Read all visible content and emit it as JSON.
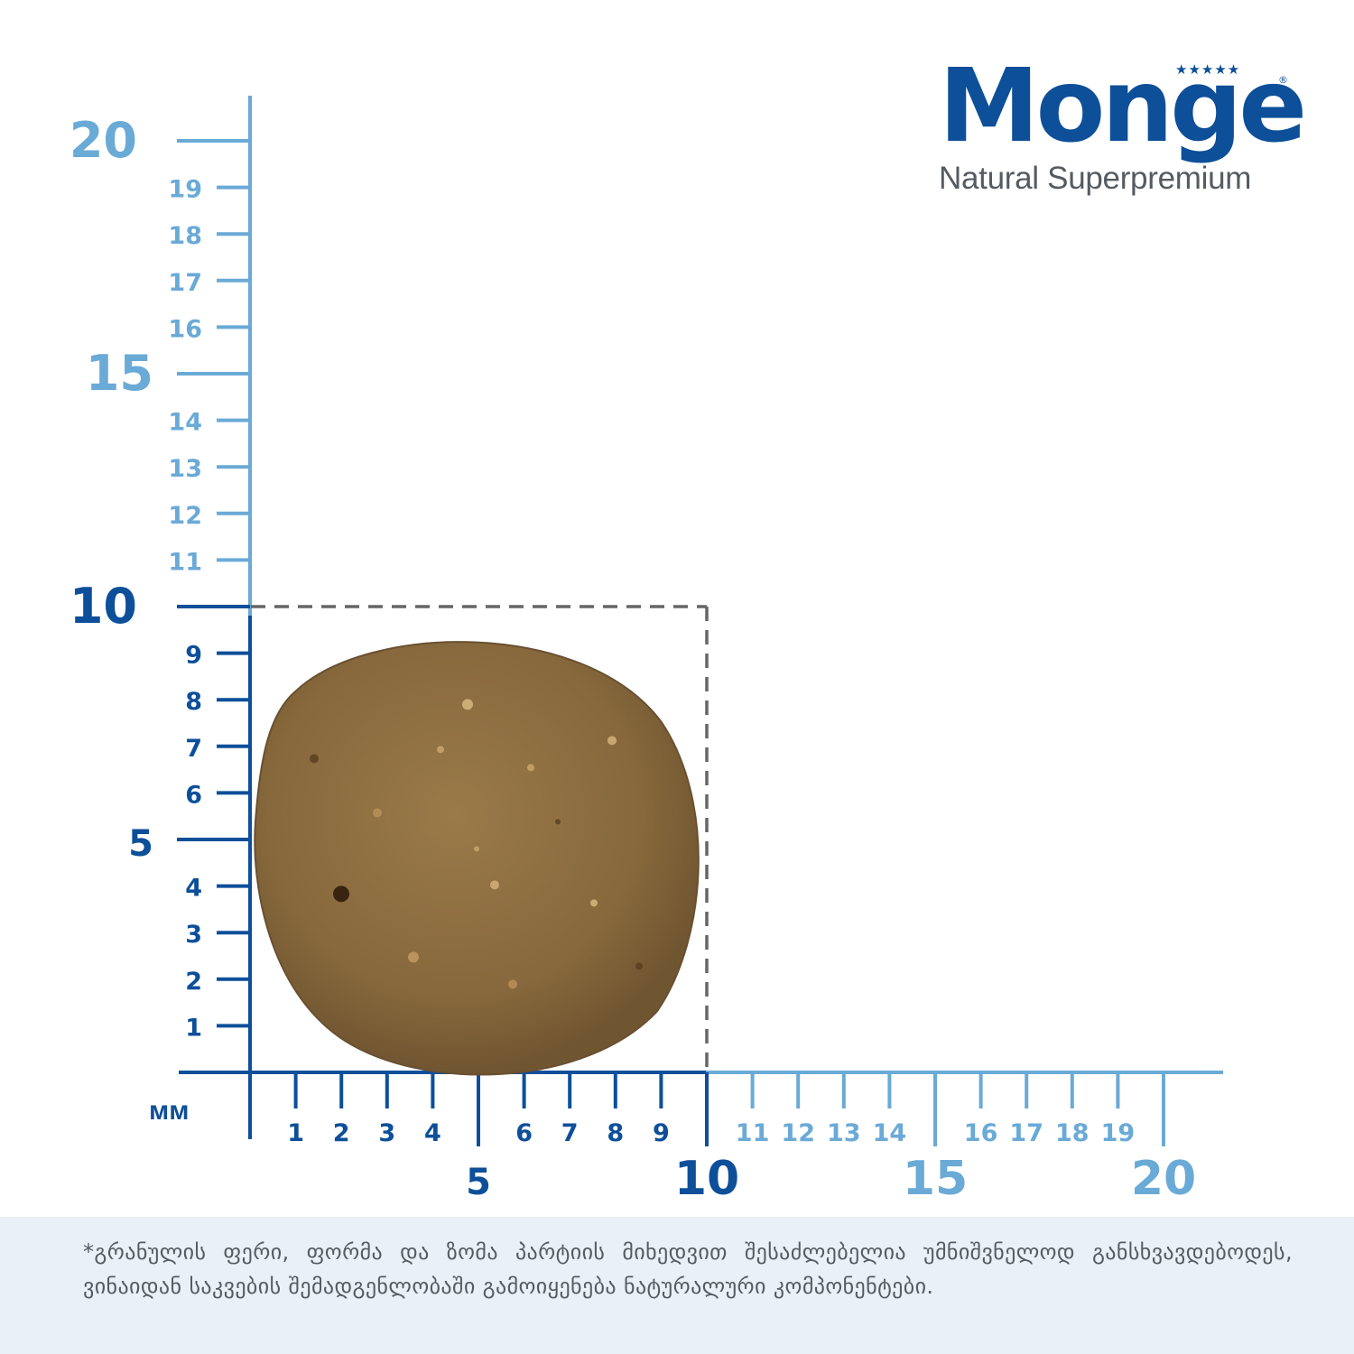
{
  "brand": {
    "name": "Monge",
    "tagline": "Natural Superpremium",
    "stars_icon": "five-stars-icon",
    "registered": "®"
  },
  "colors": {
    "dark_blue": "#0d4f99",
    "light_blue": "#6aaad6",
    "gray_text": "#555b61",
    "footer_bg": "#e9f0f7",
    "dash": "#666666"
  },
  "unit_label": "мм",
  "vertical_ruler": {
    "major_labels": [
      "20",
      "15",
      "10",
      "5"
    ],
    "minor_labels": [
      "19",
      "18",
      "17",
      "16",
      "14",
      "13",
      "12",
      "11",
      "9",
      "8",
      "7",
      "6",
      "4",
      "3",
      "2",
      "1"
    ]
  },
  "horizontal_ruler": {
    "major_labels": [
      "5",
      "10",
      "15",
      "20"
    ],
    "minor_labels": [
      "1",
      "2",
      "3",
      "4",
      "6",
      "7",
      "8",
      "9",
      "11",
      "12",
      "13",
      "14",
      "16",
      "17",
      "18",
      "19"
    ]
  },
  "kibble": {
    "width_mm": 10,
    "height_mm": 10,
    "icon": "kibble-pellet-icon"
  },
  "disclaimer": "*გრანულის ფერი, ფორმა და ზომა პარტიის მიხედვით შესაძლებელია უმნიშვნელოდ განსხვავდებოდეს, ვინაიდან საკვების შემადგენლობაში გამოიყენება ნატურალური კომპონენტები."
}
